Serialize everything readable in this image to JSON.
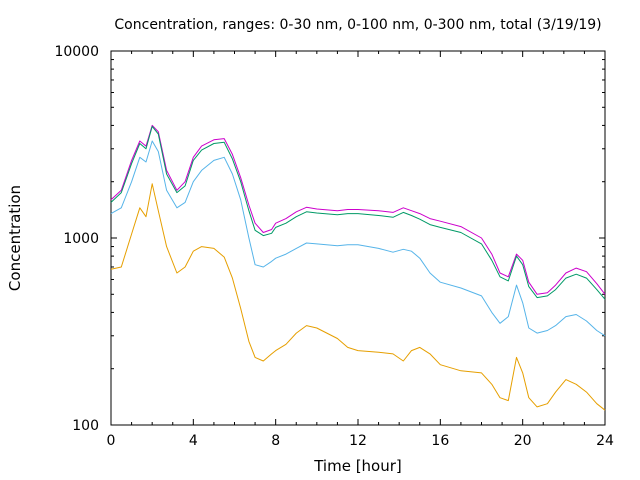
{
  "chart_data": {
    "type": "line",
    "title": "Concentration, ranges: 0-30 nm, 0-100 nm, 0-300 nm, total (3/19/19)",
    "xlabel": "Time [hour]",
    "ylabel": "Concentration",
    "xlim": [
      0,
      24
    ],
    "ylim": [
      100,
      10000
    ],
    "yscale": "log",
    "grid": false,
    "x_ticks": [
      0,
      4,
      8,
      12,
      16,
      20,
      24
    ],
    "x_tick_labels": [
      "0",
      "4",
      "8",
      "12",
      "16",
      "20",
      "24"
    ],
    "y_ticks": [
      100,
      1000,
      10000
    ],
    "y_tick_labels": [
      "100",
      "1000",
      "10000"
    ],
    "x": [
      0,
      0.5,
      1.0,
      1.4,
      1.7,
      2.0,
      2.3,
      2.7,
      3.2,
      3.6,
      4.0,
      4.4,
      5.0,
      5.5,
      5.9,
      6.3,
      6.7,
      7.0,
      7.4,
      7.8,
      8.0,
      8.5,
      9.0,
      9.5,
      10.0,
      11.0,
      11.5,
      12.0,
      13.0,
      13.7,
      14.2,
      14.6,
      15.0,
      15.5,
      16.0,
      17.0,
      18.0,
      18.5,
      18.9,
      19.3,
      19.7,
      20.0,
      20.3,
      20.7,
      21.2,
      21.6,
      22.1,
      22.6,
      23.1,
      23.6,
      24.0
    ],
    "series": [
      {
        "color": "#cc00cc",
        "values": [
          1600,
          1800,
          2600,
          3300,
          3100,
          4000,
          3700,
          2300,
          1800,
          2000,
          2700,
          3100,
          3350,
          3400,
          2800,
          2100,
          1500,
          1200,
          1070,
          1110,
          1200,
          1270,
          1380,
          1460,
          1430,
          1400,
          1420,
          1420,
          1400,
          1370,
          1450,
          1400,
          1350,
          1270,
          1230,
          1150,
          1000,
          820,
          650,
          620,
          820,
          760,
          580,
          500,
          510,
          560,
          650,
          690,
          660,
          570,
          500
        ]
      },
      {
        "color": "#009966",
        "values": [
          1550,
          1750,
          2500,
          3200,
          3000,
          3950,
          3600,
          2200,
          1750,
          1900,
          2600,
          2950,
          3200,
          3250,
          2650,
          2000,
          1400,
          1100,
          1030,
          1060,
          1140,
          1200,
          1300,
          1380,
          1360,
          1330,
          1350,
          1350,
          1320,
          1290,
          1370,
          1320,
          1260,
          1180,
          1140,
          1070,
          930,
          760,
          620,
          590,
          800,
          720,
          550,
          480,
          490,
          530,
          610,
          640,
          610,
          530,
          470
        ]
      },
      {
        "color": "#56b4e9",
        "values": [
          1350,
          1450,
          2000,
          2700,
          2550,
          3300,
          2900,
          1800,
          1450,
          1550,
          2000,
          2300,
          2600,
          2700,
          2200,
          1600,
          1000,
          720,
          700,
          750,
          780,
          820,
          880,
          940,
          930,
          910,
          920,
          920,
          880,
          840,
          870,
          850,
          780,
          650,
          580,
          540,
          490,
          400,
          350,
          380,
          560,
          450,
          330,
          310,
          320,
          340,
          380,
          390,
          360,
          320,
          300
        ]
      },
      {
        "color": "#e69f00",
        "values": [
          680,
          700,
          1050,
          1450,
          1300,
          1950,
          1400,
          900,
          650,
          700,
          850,
          900,
          880,
          790,
          610,
          420,
          280,
          230,
          220,
          240,
          250,
          270,
          310,
          340,
          330,
          290,
          260,
          250,
          245,
          240,
          220,
          250,
          260,
          240,
          210,
          195,
          190,
          165,
          140,
          135,
          230,
          190,
          140,
          125,
          130,
          150,
          175,
          165,
          150,
          130,
          120
        ]
      }
    ]
  }
}
